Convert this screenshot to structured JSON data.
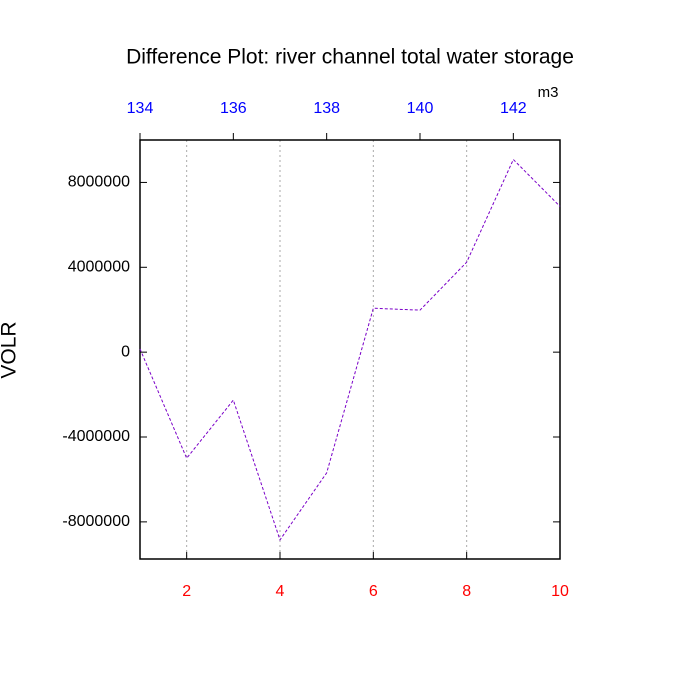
{
  "chart_data": {
    "type": "line",
    "title": "Difference Plot: river channel total water storage",
    "y_label": "VOLR",
    "units": "m3",
    "x": [
      1,
      2,
      3,
      4,
      5,
      6,
      7,
      8,
      9,
      10
    ],
    "series": [
      {
        "color": "#7a00c8",
        "values": [
          150000,
          -5000000,
          -2260000,
          -8850000,
          -5690000,
          2070000,
          1980000,
          4240000,
          9080000,
          6870000
        ]
      }
    ],
    "xlim": [
      1,
      10
    ],
    "xticks": [
      2,
      4,
      6,
      8,
      10
    ],
    "xtick_color": "#ff0000",
    "x2lim": [
      134,
      143
    ],
    "x2ticks": [
      134,
      136,
      138,
      140,
      142
    ],
    "x2tick_color": "#0000ff",
    "ylim": [
      -9750000,
      10000000
    ],
    "yticks": [
      -8000000,
      -4000000,
      0,
      4000000,
      8000000
    ],
    "grid": true,
    "dashed": true
  }
}
